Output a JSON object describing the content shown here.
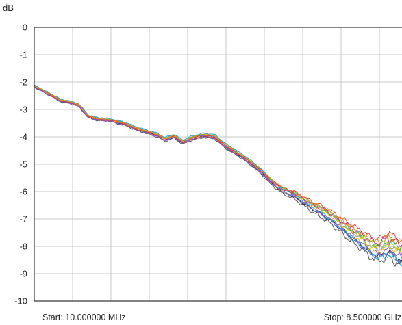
{
  "chart_data": {
    "type": "line",
    "y_unit_label": "dB",
    "ylim": [
      -10,
      0
    ],
    "y_ticks": [
      "0",
      "-1",
      "-2",
      "-3",
      "-4",
      "-5",
      "-6",
      "-7",
      "-8",
      "-9",
      "-10"
    ],
    "x_start_label": "Start: 10.000000 MHz",
    "x_stop_label": "Stop: 8.500000 GHz",
    "x_start_ghz": 0.01,
    "x_stop_ghz": 8.5,
    "x_divisions": 10,
    "grid": true,
    "legend": "none",
    "base_curve": {
      "x": [
        0.01,
        0.35,
        0.6,
        0.8,
        1.0,
        1.2,
        1.4,
        1.7,
        2.0,
        2.3,
        2.5,
        2.75,
        2.9,
        3.1,
        3.3,
        3.5,
        3.75,
        4.0,
        4.25,
        4.5,
        4.75,
        5.0,
        5.25,
        5.5,
        5.75,
        5.95,
        6.15,
        6.4,
        6.6,
        6.85,
        7.05,
        7.25,
        7.45,
        7.65,
        7.85,
        8.05,
        8.25,
        8.4,
        8.5
      ],
      "y": [
        -2.15,
        -2.45,
        -2.68,
        -2.74,
        -2.85,
        -3.25,
        -3.35,
        -3.4,
        -3.52,
        -3.72,
        -3.82,
        -3.95,
        -4.1,
        -3.98,
        -4.2,
        -4.05,
        -3.95,
        -4.0,
        -4.35,
        -4.6,
        -4.88,
        -5.2,
        -5.6,
        -5.9,
        -6.05,
        -6.25,
        -6.45,
        -6.65,
        -6.85,
        -7.15,
        -7.4,
        -7.6,
        -7.85,
        -7.95,
        -7.75,
        -7.95,
        -8.05,
        -8.25,
        -8.6
      ]
    },
    "series": [
      {
        "color": "#1a1a1a",
        "offset": -0.06,
        "spread": 0.55,
        "wiggle": 1.0
      },
      {
        "color": "#555555",
        "offset": -0.12,
        "spread": 0.75,
        "wiggle": 1.3
      },
      {
        "color": "#8a8a8a",
        "offset": 0.08,
        "spread": 0.35,
        "wiggle": 0.9
      },
      {
        "color": "#22a846",
        "offset": 0.05,
        "spread": 0.1,
        "wiggle": 1.1
      },
      {
        "color": "#9ecf3a",
        "offset": 0.1,
        "spread": 0.25,
        "wiggle": 1.2
      },
      {
        "color": "#e6c619",
        "offset": -0.02,
        "spread": 0.3,
        "wiggle": 1.4
      },
      {
        "color": "#27a3c9",
        "offset": 0.14,
        "spread": 0.95,
        "wiggle": 1.0
      },
      {
        "color": "#4a6fd6",
        "offset": 0.0,
        "spread": 0.7,
        "wiggle": 1.2
      },
      {
        "color": "#8a5fc4",
        "offset": -0.08,
        "spread": 0.4,
        "wiggle": 0.8
      },
      {
        "color": "#c23a7a",
        "offset": -0.04,
        "spread": -0.15,
        "wiggle": 1.3
      },
      {
        "color": "#d94a3a",
        "offset": 0.03,
        "spread": -0.3,
        "wiggle": 1.1
      },
      {
        "color": "#e58a2a",
        "offset": 0.06,
        "spread": -0.05,
        "wiggle": 1.0
      }
    ]
  }
}
